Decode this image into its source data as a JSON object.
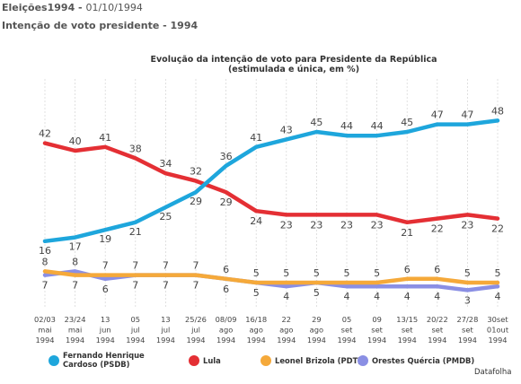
{
  "header": {
    "section": "Eleições1994",
    "separator": " - ",
    "date": "01/10/1994",
    "subtitle": "Intenção de voto presidente - 1994"
  },
  "chart_data": {
    "type": "line",
    "title": "Evolução da intenção de voto para Presidente da República",
    "subtitle": "(estimulada e única, em %)",
    "source": "Datafolha",
    "grid": "vertical",
    "categories": [
      [
        "02/03",
        "mai",
        "1994"
      ],
      [
        "23/24",
        "mai",
        "1994"
      ],
      [
        "13",
        "jun",
        "1994"
      ],
      [
        "05",
        "jul",
        "1994"
      ],
      [
        "13",
        "jul",
        "1994"
      ],
      [
        "25/26",
        "jul",
        "1994"
      ],
      [
        "08/09",
        "ago",
        "1994"
      ],
      [
        "16/18",
        "ago",
        "1994"
      ],
      [
        "22",
        "ago",
        "1994"
      ],
      [
        "29",
        "ago",
        "1994"
      ],
      [
        "05",
        "set",
        "1994"
      ],
      [
        "09",
        "set",
        "1994"
      ],
      [
        "13/15",
        "set",
        "1994"
      ],
      [
        "20/22",
        "set",
        "1994"
      ],
      [
        "27/28",
        "set",
        "1994"
      ],
      [
        "30set",
        "01out",
        "1994"
      ]
    ],
    "series": [
      {
        "name": "Fernando Henrique Cardoso (PSDB)",
        "legend_lines": [
          "Fernando Henrique",
          "Cardoso (PSDB)"
        ],
        "color": "#1ea6dc",
        "values": [
          16,
          17,
          19,
          21,
          25,
          29,
          36,
          41,
          43,
          45,
          44,
          44,
          45,
          47,
          47,
          48
        ]
      },
      {
        "name": "Lula",
        "legend_lines": [
          "Lula"
        ],
        "color": "#e42f34",
        "values": [
          42,
          40,
          41,
          38,
          34,
          32,
          29,
          24,
          23,
          23,
          23,
          23,
          21,
          22,
          23,
          22
        ]
      },
      {
        "name": "Leonel Brizola (PDT)",
        "legend_lines": [
          "Leonel Brizola (PDT)"
        ],
        "color": "#f5a93a",
        "values": [
          8,
          7,
          7,
          7,
          7,
          7,
          6,
          5,
          5,
          5,
          5,
          5,
          6,
          6,
          5,
          5
        ]
      },
      {
        "name": "Orestes Quércia (PMDB)",
        "legend_lines": [
          "Orestes Quércia (PMDB)"
        ],
        "color": "#8a8fe4",
        "values": [
          7,
          8,
          6,
          7,
          7,
          7,
          6,
          5,
          4,
          5,
          4,
          4,
          4,
          4,
          3,
          4
        ]
      }
    ]
  }
}
